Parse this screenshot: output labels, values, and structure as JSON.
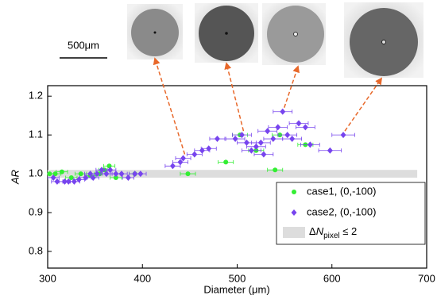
{
  "chart_data": {
    "type": "scatter",
    "xlabel": "Diameter (μm)",
    "ylabel": "AR",
    "scale_bar": "500μm",
    "xlim": [
      300,
      700
    ],
    "xticks": [
      300,
      400,
      500,
      600,
      700
    ],
    "ylim": [
      0.757,
      1.227
    ],
    "yticks": [
      {
        "value": 0.8,
        "label": "0.8"
      },
      {
        "value": 0.9,
        "label": "0.9"
      },
      {
        "value": 1.0,
        "label": "1.0"
      },
      {
        "value": 1.1,
        "label": "1.1"
      },
      {
        "value": 1.2,
        "label": "1.2"
      }
    ],
    "band": {
      "name_parts": [
        "Δ",
        "N",
        "pixel",
        " ≤ 2"
      ],
      "color": "#dddddd",
      "xlim": [
        300,
        690
      ],
      "ylim": [
        0.99,
        1.01
      ]
    },
    "series": [
      {
        "name": "case1, (0,-100)",
        "color": "#33ee33",
        "marker": "circle",
        "x": [
          302,
          308,
          315,
          325,
          335,
          345,
          355,
          360,
          365,
          372,
          392,
          448,
          488,
          503,
          520,
          540,
          545,
          572
        ],
        "values": [
          1.0,
          1.0,
          1.005,
          0.99,
          1.0,
          0.995,
          1.0,
          1.01,
          1.02,
          0.99,
          1.0,
          1.0,
          1.03,
          1.1,
          1.06,
          1.01,
          1.1,
          1.075
        ],
        "xerr": [
          6,
          6,
          6,
          6,
          6,
          6,
          6,
          6,
          6,
          6,
          6,
          8,
          8,
          8,
          8,
          8,
          8,
          8
        ]
      },
      {
        "name": "case2, (0,-100)",
        "color": "#7744ee",
        "marker": "diamond",
        "x": [
          306,
          310,
          318,
          322,
          328,
          333,
          340,
          345,
          348,
          352,
          357,
          362,
          366,
          372,
          378,
          385,
          392,
          398,
          432,
          440,
          443,
          455,
          463,
          470,
          479,
          498,
          505,
          510,
          515,
          520,
          525,
          528,
          532,
          538,
          543,
          548,
          553,
          558,
          565,
          572,
          577,
          598,
          612
        ],
        "values": [
          0.99,
          0.98,
          0.98,
          0.98,
          0.98,
          0.985,
          0.99,
          1.0,
          0.99,
          1.0,
          1.01,
          1.0,
          1.01,
          1.0,
          1.0,
          0.99,
          1.0,
          1.0,
          1.02,
          1.03,
          1.04,
          1.05,
          1.06,
          1.065,
          1.09,
          1.09,
          1.1,
          1.08,
          1.06,
          1.07,
          1.08,
          1.05,
          1.11,
          1.09,
          1.12,
          1.16,
          1.1,
          1.09,
          1.13,
          1.12,
          1.075,
          1.06,
          1.1
        ],
        "xerr": [
          6,
          6,
          6,
          6,
          6,
          6,
          6,
          6,
          6,
          6,
          6,
          6,
          6,
          6,
          6,
          6,
          6,
          6,
          8,
          8,
          8,
          8,
          8,
          8,
          8,
          10,
          10,
          10,
          10,
          10,
          10,
          10,
          10,
          10,
          10,
          10,
          10,
          10,
          10,
          10,
          10,
          12,
          12
        ]
      }
    ]
  }
}
